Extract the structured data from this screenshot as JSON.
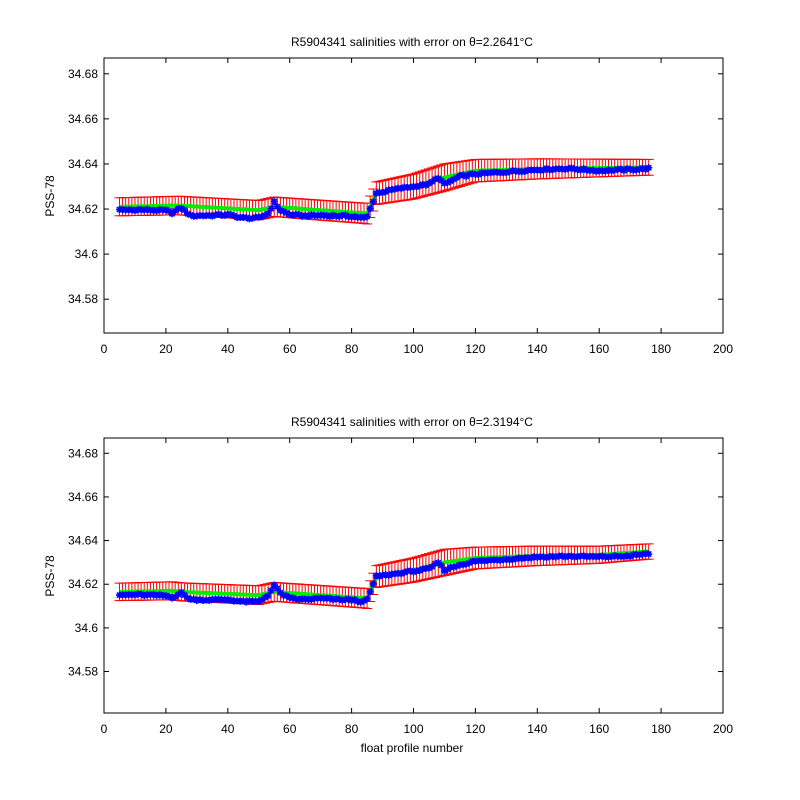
{
  "figure": {
    "background": "#ffffff",
    "error_bar_color": "#ff0000",
    "fit_line_color": "#00ee00",
    "marker_color": "#0000ff"
  },
  "chart_data": [
    {
      "type": "scatter",
      "title": "R5904341 salinities with error on θ=2.2641°C",
      "ylabel": "PSS-78",
      "xlabel": "",
      "xlim": [
        0,
        200
      ],
      "ylim": [
        34.565,
        34.687
      ],
      "xticks": [
        0,
        20,
        40,
        60,
        80,
        100,
        120,
        140,
        160,
        180,
        200
      ],
      "xtick_labels": [
        "0",
        "20",
        "40",
        "60",
        "80",
        "100",
        "120",
        "140",
        "160",
        "180",
        "200"
      ],
      "yticks": [
        34.58,
        34.6,
        34.62,
        34.64,
        34.66,
        34.68
      ],
      "ytick_labels": [
        "34.58",
        "34.6",
        "34.62",
        "34.64",
        "34.66",
        "34.68"
      ],
      "grid": false,
      "legend": "none",
      "profile_start": 5,
      "profile_end": 176,
      "salinity_breakpoints": [
        [
          5,
          34.6195
        ],
        [
          10,
          34.6197
        ],
        [
          15,
          34.6196
        ],
        [
          20,
          34.6193
        ],
        [
          22,
          34.6183
        ],
        [
          25,
          34.6205
        ],
        [
          28,
          34.617
        ],
        [
          35,
          34.6172
        ],
        [
          40,
          34.6175
        ],
        [
          45,
          34.616
        ],
        [
          50,
          34.616
        ],
        [
          53,
          34.618
        ],
        [
          55,
          34.623
        ],
        [
          57,
          34.6195
        ],
        [
          60,
          34.6175
        ],
        [
          65,
          34.617
        ],
        [
          70,
          34.6172
        ],
        [
          75,
          34.617
        ],
        [
          80,
          34.6168
        ],
        [
          84,
          34.616
        ],
        [
          85,
          34.6165
        ],
        [
          88,
          34.627
        ],
        [
          95,
          34.629
        ],
        [
          100,
          34.63
        ],
        [
          105,
          34.631
        ],
        [
          108,
          34.634
        ],
        [
          110,
          34.631
        ],
        [
          115,
          34.6345
        ],
        [
          120,
          34.6355
        ],
        [
          125,
          34.636
        ],
        [
          135,
          34.637
        ],
        [
          140,
          34.6375
        ],
        [
          150,
          34.638
        ],
        [
          160,
          34.637
        ],
        [
          170,
          34.6375
        ],
        [
          176,
          34.638
        ]
      ],
      "fit_breakpoints": [
        [
          5,
          34.621
        ],
        [
          22,
          34.6215
        ],
        [
          25,
          34.6215
        ],
        [
          50,
          34.6195
        ],
        [
          55,
          34.621
        ],
        [
          85,
          34.618
        ],
        [
          88,
          34.627
        ],
        [
          100,
          34.63
        ],
        [
          110,
          34.634
        ],
        [
          120,
          34.637
        ],
        [
          140,
          34.6378
        ],
        [
          160,
          34.6382
        ],
        [
          176,
          34.6385
        ]
      ],
      "error_half_width": [
        [
          5,
          0.004
        ],
        [
          84,
          0.0045
        ],
        [
          88,
          0.005
        ],
        [
          110,
          0.006
        ],
        [
          120,
          0.005
        ],
        [
          176,
          0.0035
        ]
      ]
    },
    {
      "type": "scatter",
      "title": "R5904341 salinities with error on θ=2.3194°C",
      "ylabel": "PSS-78",
      "xlabel": "float profile number",
      "xlim": [
        0,
        200
      ],
      "ylim": [
        34.561,
        34.687
      ],
      "xticks": [
        0,
        20,
        40,
        60,
        80,
        100,
        120,
        140,
        160,
        180,
        200
      ],
      "xtick_labels": [
        "0",
        "20",
        "40",
        "60",
        "80",
        "100",
        "120",
        "140",
        "160",
        "180",
        "200"
      ],
      "yticks": [
        34.58,
        34.6,
        34.62,
        34.64,
        34.66,
        34.68
      ],
      "ytick_labels": [
        "34.58",
        "34.6",
        "34.62",
        "34.64",
        "34.66",
        "34.68"
      ],
      "grid": false,
      "legend": "none",
      "profile_start": 5,
      "profile_end": 176,
      "salinity_breakpoints": [
        [
          5,
          34.615
        ],
        [
          10,
          34.6152
        ],
        [
          15,
          34.615
        ],
        [
          20,
          34.6148
        ],
        [
          22,
          34.614
        ],
        [
          25,
          34.616
        ],
        [
          28,
          34.613
        ],
        [
          35,
          34.6128
        ],
        [
          40,
          34.613
        ],
        [
          45,
          34.612
        ],
        [
          50,
          34.612
        ],
        [
          53,
          34.615
        ],
        [
          55,
          34.6195
        ],
        [
          57,
          34.616
        ],
        [
          60,
          34.6135
        ],
        [
          65,
          34.613
        ],
        [
          70,
          34.6135
        ],
        [
          75,
          34.613
        ],
        [
          80,
          34.6128
        ],
        [
          84,
          34.612
        ],
        [
          85,
          34.613
        ],
        [
          88,
          34.6235
        ],
        [
          95,
          34.625
        ],
        [
          100,
          34.626
        ],
        [
          105,
          34.627
        ],
        [
          108,
          34.63
        ],
        [
          110,
          34.6265
        ],
        [
          115,
          34.629
        ],
        [
          120,
          34.6305
        ],
        [
          125,
          34.631
        ],
        [
          135,
          34.632
        ],
        [
          140,
          34.6325
        ],
        [
          150,
          34.6328
        ],
        [
          160,
          34.6325
        ],
        [
          170,
          34.633
        ],
        [
          176,
          34.634
        ]
      ],
      "fit_breakpoints": [
        [
          5,
          34.6165
        ],
        [
          22,
          34.617
        ],
        [
          25,
          34.6165
        ],
        [
          50,
          34.615
        ],
        [
          55,
          34.6165
        ],
        [
          85,
          34.6135
        ],
        [
          88,
          34.6235
        ],
        [
          100,
          34.6265
        ],
        [
          110,
          34.63
        ],
        [
          120,
          34.632
        ],
        [
          140,
          34.633
        ],
        [
          160,
          34.6335
        ],
        [
          176,
          34.635
        ]
      ],
      "error_half_width": [
        [
          5,
          0.004
        ],
        [
          84,
          0.0045
        ],
        [
          88,
          0.005
        ],
        [
          110,
          0.006
        ],
        [
          120,
          0.005
        ],
        [
          176,
          0.0035
        ]
      ]
    }
  ]
}
